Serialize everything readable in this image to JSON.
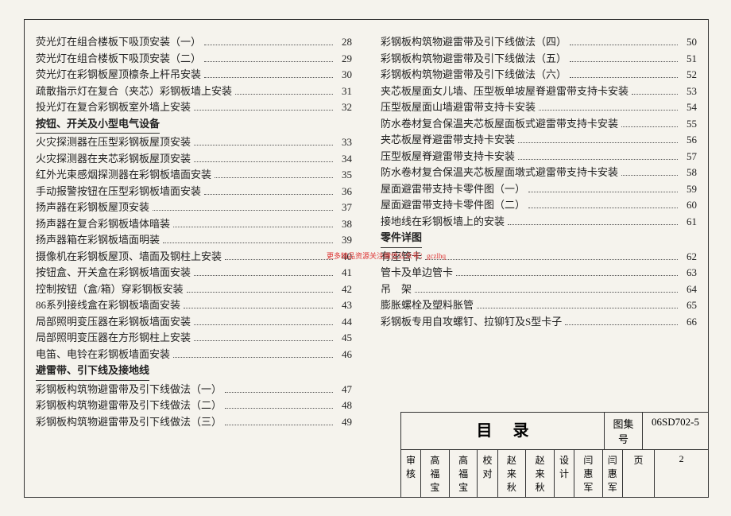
{
  "left_items": [
    {
      "type": "item",
      "title": "荧光灯在组合楼板下吸顶安装（一）",
      "page": "28"
    },
    {
      "type": "item",
      "title": "荧光灯在组合楼板下吸顶安装（二）",
      "page": "29"
    },
    {
      "type": "item",
      "title": "荧光灯在彩钢板屋顶檩条上杆吊安装",
      "page": "30"
    },
    {
      "type": "item",
      "title": "疏散指示灯在复合（夹芯）彩钢板墙上安装",
      "page": "31"
    },
    {
      "type": "item",
      "title": "投光灯在复合彩钢板室外墙上安装",
      "page": "32"
    },
    {
      "type": "section",
      "title": "按钮、开关及小型电气设备"
    },
    {
      "type": "item",
      "title": "火灾探测器在压型彩钢板屋顶安装",
      "page": "33"
    },
    {
      "type": "item",
      "title": "火灾探测器在夹芯彩钢板屋顶安装",
      "page": "34"
    },
    {
      "type": "item",
      "title": "红外光束感烟探测器在彩钢板墙面安装",
      "page": "35"
    },
    {
      "type": "item",
      "title": "手动报警按钮在压型彩钢板墙面安装",
      "page": "36"
    },
    {
      "type": "item",
      "title": "扬声器在彩钢板屋顶安装",
      "page": "37"
    },
    {
      "type": "item",
      "title": "扬声器在复合彩钢板墙体暗装",
      "page": "38"
    },
    {
      "type": "item",
      "title": "扬声器箱在彩钢板墙面明装",
      "page": "39"
    },
    {
      "type": "item",
      "title": "摄像机在彩钢板屋顶、墙面及钢柱上安装",
      "page": "40"
    },
    {
      "type": "item",
      "title": "按钮盒、开关盒在彩钢板墙面安装",
      "page": "41"
    },
    {
      "type": "item",
      "title": "控制按钮（盒/箱）穿彩钢板安装",
      "page": "42"
    },
    {
      "type": "item",
      "title": "86系列接线盒在彩钢板墙面安装",
      "page": "43"
    },
    {
      "type": "item",
      "title": "局部照明变压器在彩钢板墙面安装",
      "page": "44"
    },
    {
      "type": "item",
      "title": "局部照明变压器在方形钢柱上安装",
      "page": "45"
    },
    {
      "type": "item",
      "title": "电笛、电铃在彩钢板墙面安装",
      "page": "46"
    },
    {
      "type": "section",
      "title": "避雷带、引下线及接地线"
    },
    {
      "type": "item",
      "title": "彩钢板构筑物避雷带及引下线做法（一）",
      "page": "47"
    },
    {
      "type": "item",
      "title": "彩钢板构筑物避雷带及引下线做法（二）",
      "page": "48"
    },
    {
      "type": "item",
      "title": "彩钢板构筑物避雷带及引下线做法（三）",
      "page": "49"
    }
  ],
  "right_items": [
    {
      "type": "item",
      "title": "彩钢板构筑物避雷带及引下线做法（四）",
      "page": "50"
    },
    {
      "type": "item",
      "title": "彩钢板构筑物避雷带及引下线做法（五）",
      "page": "51"
    },
    {
      "type": "item",
      "title": "彩钢板构筑物避雷带及引下线做法（六）",
      "page": "52"
    },
    {
      "type": "item",
      "title": "夹芯板屋面女儿墙、压型板单坡屋脊避雷带支持卡安装",
      "page": "53"
    },
    {
      "type": "item",
      "title": "压型板屋面山墙避雷带支持卡安装",
      "page": "54"
    },
    {
      "type": "item",
      "title": "防水卷材复合保温夹芯板屋面板式避雷带支持卡安装",
      "page": "55"
    },
    {
      "type": "item",
      "title": "夹芯板屋脊避雷带支持卡安装",
      "page": "56"
    },
    {
      "type": "item",
      "title": "压型板屋脊避雷带支持卡安装",
      "page": "57"
    },
    {
      "type": "item",
      "title": "防水卷材复合保温夹芯板屋面墩式避雷带支持卡安装",
      "page": "58"
    },
    {
      "type": "item",
      "title": "屋面避雷带支持卡零件图（一）",
      "page": "59"
    },
    {
      "type": "item",
      "title": "屋面避雷带支持卡零件图（二）",
      "page": "60"
    },
    {
      "type": "item",
      "title": "接地线在彩钢板墙上的安装",
      "page": "61"
    },
    {
      "type": "section",
      "title": "零件详图"
    },
    {
      "type": "item",
      "title": "有座管卡",
      "page": "62"
    },
    {
      "type": "item",
      "title": "管卡及单边管卡",
      "page": "63"
    },
    {
      "type": "item",
      "title": "吊　架",
      "page": "64"
    },
    {
      "type": "item",
      "title": "膨胀螺栓及塑料胀管",
      "page": "65"
    },
    {
      "type": "item",
      "title": "彩钢板专用自攻螺钉、拉铆钉及S型卡子",
      "page": "66"
    }
  ],
  "watermark_red": "更多精品资源关注微信公众号：gczlhq",
  "title_block": {
    "main_title": "目录",
    "drawing_set_label": "图集号",
    "drawing_set": "06SD702-5",
    "review_label": "审核",
    "reviewer": "高福宝",
    "reviewer_sign": "高福宝",
    "check_label": "校对",
    "checker": "赵来秋",
    "checker_sign": "赵来秋",
    "design_label": "设计",
    "designer": "闫惠军",
    "designer_sign": "闫惠军",
    "page_label": "页",
    "page_num": "2"
  }
}
